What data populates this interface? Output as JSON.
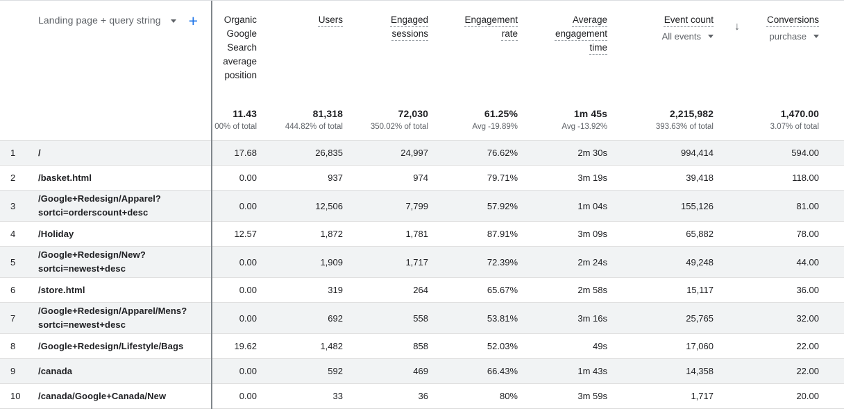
{
  "dimension": {
    "label": "Landing page + query string",
    "add_label": "+"
  },
  "columns": [
    {
      "id": "avg_position",
      "label": "Organic\nGoogle\nSearch\naverage\nposition",
      "total": "11.43",
      "total_sub": "00% of total"
    },
    {
      "id": "users",
      "label": "Users",
      "total": "81,318",
      "total_sub": "444.82% of total"
    },
    {
      "id": "engaged_sessions",
      "label": "Engaged\nsessions",
      "total": "72,030",
      "total_sub": "350.02% of total"
    },
    {
      "id": "engagement_rate",
      "label": "Engagement\nrate",
      "total": "61.25%",
      "total_sub": "Avg -19.89%"
    },
    {
      "id": "avg_engagement_time",
      "label": "Average\nengagement\ntime",
      "total": "1m 45s",
      "total_sub": "Avg -13.92%"
    },
    {
      "id": "event_count",
      "label": "Event count",
      "selector": "All events",
      "total": "2,215,982",
      "total_sub": "393.63% of total"
    },
    {
      "id": "conversions",
      "label": "Conversions",
      "selector": "purchase",
      "sort_icon": "↓",
      "total": "1,470.00",
      "total_sub": "3.07% of total"
    }
  ],
  "rows": [
    {
      "idx": "1",
      "page": "/",
      "pos": "17.68",
      "users": "26,835",
      "sessions": "24,997",
      "rate": "76.62%",
      "time": "2m 30s",
      "events": "994,414",
      "conv": "594.00"
    },
    {
      "idx": "2",
      "page": "/basket.html",
      "pos": "0.00",
      "users": "937",
      "sessions": "974",
      "rate": "79.71%",
      "time": "3m 19s",
      "events": "39,418",
      "conv": "118.00"
    },
    {
      "idx": "3",
      "page": "/Google+Redesign/Apparel?\nsortci=orderscount+desc",
      "pos": "0.00",
      "users": "12,506",
      "sessions": "7,799",
      "rate": "57.92%",
      "time": "1m 04s",
      "events": "155,126",
      "conv": "81.00"
    },
    {
      "idx": "4",
      "page": "/Holiday",
      "pos": "12.57",
      "users": "1,872",
      "sessions": "1,781",
      "rate": "87.91%",
      "time": "3m 09s",
      "events": "65,882",
      "conv": "78.00"
    },
    {
      "idx": "5",
      "page": "/Google+Redesign/New?\nsortci=newest+desc",
      "pos": "0.00",
      "users": "1,909",
      "sessions": "1,717",
      "rate": "72.39%",
      "time": "2m 24s",
      "events": "49,248",
      "conv": "44.00"
    },
    {
      "idx": "6",
      "page": "/store.html",
      "pos": "0.00",
      "users": "319",
      "sessions": "264",
      "rate": "65.67%",
      "time": "2m 58s",
      "events": "15,117",
      "conv": "36.00"
    },
    {
      "idx": "7",
      "page": "/Google+Redesign/Apparel/Mens?\nsortci=newest+desc",
      "pos": "0.00",
      "users": "692",
      "sessions": "558",
      "rate": "53.81%",
      "time": "3m 16s",
      "events": "25,765",
      "conv": "32.00"
    },
    {
      "idx": "8",
      "page": "/Google+Redesign/Lifestyle/Bags",
      "pos": "19.62",
      "users": "1,482",
      "sessions": "858",
      "rate": "52.03%",
      "time": "49s",
      "events": "17,060",
      "conv": "22.00"
    },
    {
      "idx": "9",
      "page": "/canada",
      "pos": "0.00",
      "users": "592",
      "sessions": "469",
      "rate": "66.43%",
      "time": "1m 43s",
      "events": "14,358",
      "conv": "22.00"
    },
    {
      "idx": "10",
      "page": "/canada/Google+Canada/New",
      "pos": "0.00",
      "users": "33",
      "sessions": "36",
      "rate": "80%",
      "time": "3m 59s",
      "events": "1,717",
      "conv": "20.00"
    }
  ]
}
